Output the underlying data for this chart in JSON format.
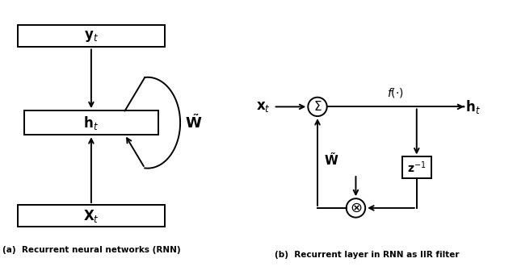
{
  "bg_color": "#ffffff",
  "title_a": "(a)  Recurrent neural networks (RNN)",
  "title_b": "(b)  Recurrent layer in RNN as IIR filter",
  "label_yt": "$\\mathbf{y}_t$",
  "label_ht_a": "$\\mathbf{h}_t$",
  "label_xt_a": "$\\mathbf{X}_t$",
  "label_W_tilde_a": "$\\tilde{\\mathbf{W}}$",
  "label_xt_b": "$\\mathbf{x}_t$",
  "label_ht_b": "$\\mathbf{h}_t$",
  "label_f": "$f(\\cdot)$",
  "label_W_tilde_b": "$\\tilde{\\mathbf{W}}$",
  "label_z": "$\\mathbf{z}^{-1}$",
  "label_sigma": "$\\Sigma$",
  "label_otimes": "$\\otimes$"
}
